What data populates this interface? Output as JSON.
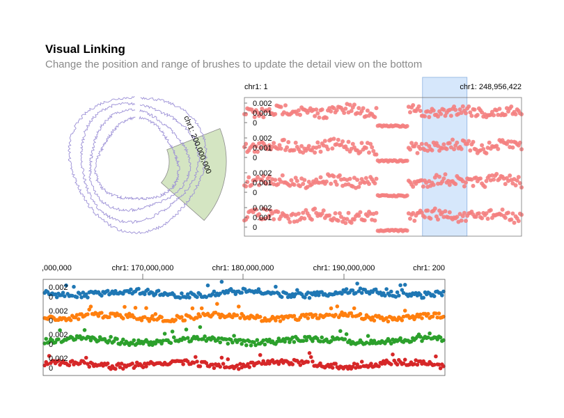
{
  "header": {
    "title": "Visual Linking",
    "subtitle": "Change the position and range of brushes to update the detail view on the bottom"
  },
  "chart_data": [
    {
      "type": "scatter",
      "view": "circular overview",
      "label": "chr1: 200,000,000",
      "tracks": 4,
      "brush": {
        "from": 170000000,
        "to": 200000000
      },
      "colors": {
        "line": "#9b8fd6",
        "brush": "#b7d39a"
      }
    },
    {
      "type": "scatter",
      "view": "linear overview",
      "x_start_label": "chr1: 1",
      "x_end_label": "chr1: 248,956,422",
      "xlim": [
        1,
        248956422
      ],
      "brush": {
        "from": 160000000,
        "to": 200000000
      },
      "series": [
        {
          "yticks": [
            "0.002",
            "0.001",
            "0"
          ]
        },
        {
          "yticks": [
            "0.002",
            "0.001",
            "0"
          ]
        },
        {
          "yticks": [
            "0.002",
            "0.001",
            "0"
          ]
        },
        {
          "yticks": [
            "0.002",
            "0.001",
            "0"
          ]
        }
      ],
      "colors": {
        "points": "#f47f7f",
        "brush": "#cfe3fa"
      }
    },
    {
      "type": "scatter",
      "view": "detail",
      "xlim": [
        160000000,
        200000000
      ],
      "xticks": [
        ",000,000",
        "chr1: 170,000,000",
        "chr1: 180,000,000",
        "chr1: 190,000,000",
        "chr1: 200"
      ],
      "series": [
        {
          "color": "#1f77b4",
          "yticks": [
            "0.002",
            "0"
          ]
        },
        {
          "color": "#ff7f0e",
          "yticks": [
            "0.002",
            "0"
          ]
        },
        {
          "color": "#2ca02c",
          "yticks": [
            "0.002",
            "0"
          ]
        },
        {
          "color": "#d62728",
          "yticks": [
            "0.002",
            "0"
          ]
        }
      ]
    }
  ]
}
